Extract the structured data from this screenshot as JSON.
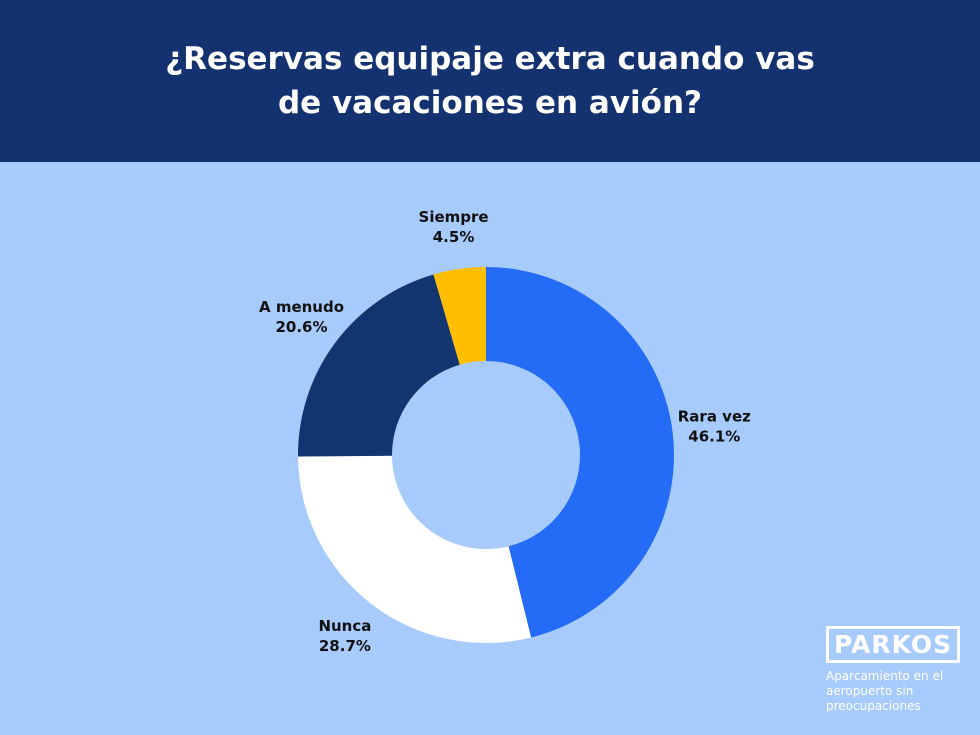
{
  "chart_data": {
    "type": "donut",
    "title": "¿Reservas equipaje extra cuando vas de vacaciones en avión?",
    "categories": [
      "Rara vez",
      "Nunca",
      "A menudo",
      "Siempre"
    ],
    "values": [
      46.1,
      28.7,
      20.6,
      4.5
    ],
    "value_labels": [
      "46.1%",
      "28.7%",
      "20.6%",
      "4.5%"
    ],
    "colors": [
      "#246bf5",
      "#ffffff",
      "#13356f",
      "#ffbe00"
    ]
  },
  "logo": {
    "name": "PARKOS",
    "tagline": "Aparcamiento en el aeropuerto sin preocupaciones"
  }
}
